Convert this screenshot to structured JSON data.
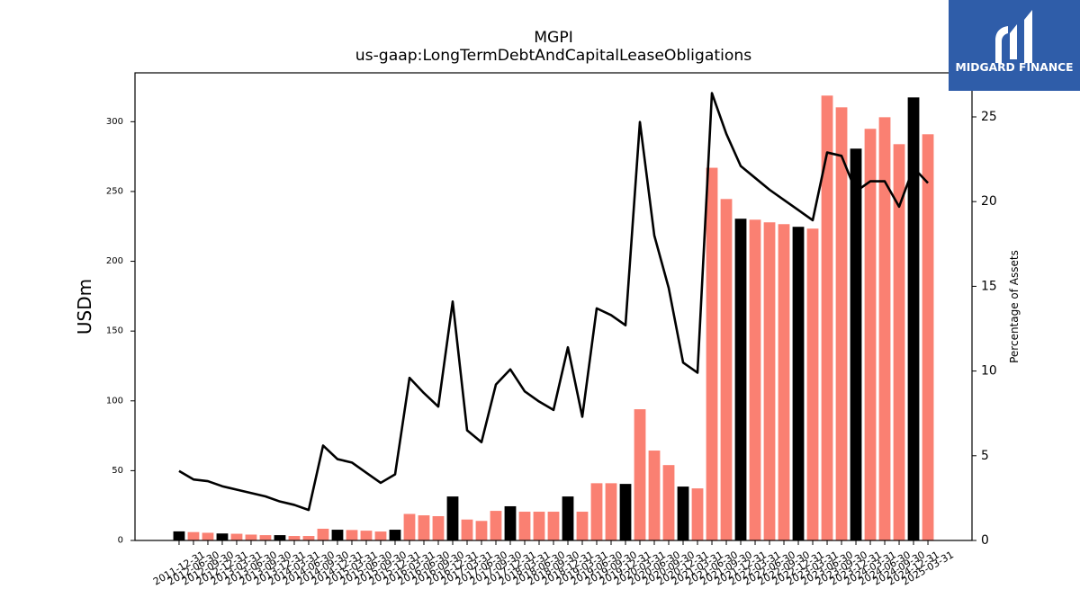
{
  "logo": {
    "text": "MIDGARD FINANCE",
    "bg_color": "#2f5da9",
    "fg_color": "#ffffff"
  },
  "chart_data": {
    "type": "bar",
    "title": "MGPI",
    "subtitle": "us-gaap:LongTermDebtAndCapitalLeaseObligations",
    "xlabel": "",
    "ylabel": "USDm",
    "y2label": "Percentage of Assets",
    "categories": [
      "2011-12-31",
      "2012-06-30",
      "2012-09-30",
      "2012-12-31",
      "2013-03-31",
      "2013-06-30",
      "2013-09-30",
      "2013-12-31",
      "2014-03-31",
      "2014-06-30",
      "2014-09-30",
      "2014-12-31",
      "2015-03-31",
      "2015-06-30",
      "2015-09-30",
      "2015-12-31",
      "2016-03-31",
      "2016-06-30",
      "2016-09-30",
      "2016-12-31",
      "2017-03-31",
      "2017-06-30",
      "2017-09-30",
      "2017-12-31",
      "2018-03-31",
      "2018-06-30",
      "2018-09-30",
      "2018-12-31",
      "2019-03-31",
      "2019-06-30",
      "2019-09-30",
      "2019-12-31",
      "2020-03-31",
      "2020-06-30",
      "2020-09-30",
      "2020-12-31",
      "2021-03-31",
      "2021-06-30",
      "2021-09-30",
      "2021-12-31",
      "2022-03-31",
      "2022-06-30",
      "2022-09-30",
      "2022-12-31",
      "2023-03-31",
      "2023-06-30",
      "2023-09-30",
      "2023-12-31",
      "2024-03-31",
      "2024-06-30",
      "2024-09-30",
      "2024-12-31",
      "2025-03-31"
    ],
    "series": [
      {
        "type": "bar",
        "y_axis": "left",
        "color": "#fa8072",
        "year_end_color": "#000000",
        "values": [
          6.5,
          6.0,
          5.5,
          5.0,
          4.8,
          4.2,
          3.8,
          3.8,
          3.2,
          3.2,
          8.4,
          7.7,
          7.5,
          7.0,
          6.4,
          7.7,
          19.0,
          18.0,
          17.4,
          31.5,
          15.0,
          14.0,
          21.2,
          24.5,
          20.6,
          20.6,
          20.6,
          31.5,
          20.6,
          41.0,
          41.0,
          40.5,
          94.0,
          64.4,
          54.0,
          38.6,
          37.3,
          267.0,
          244.6,
          230.5,
          229.8,
          227.9,
          226.6,
          224.7,
          223.4,
          318.7,
          310.3,
          280.7,
          294.9,
          303.2,
          283.9,
          317.4,
          291.0
        ]
      },
      {
        "type": "line",
        "y_axis": "right",
        "color": "#000000",
        "values": [
          4.1,
          3.6,
          3.5,
          3.2,
          3.0,
          2.8,
          2.6,
          2.3,
          2.1,
          1.8,
          5.6,
          4.8,
          4.6,
          4.0,
          3.4,
          3.9,
          9.6,
          8.7,
          7.9,
          14.1,
          6.5,
          5.8,
          9.2,
          10.1,
          8.8,
          8.2,
          7.7,
          11.4,
          7.3,
          13.7,
          13.3,
          12.7,
          24.7,
          18.0,
          14.9,
          10.5,
          9.9,
          26.4,
          24.0,
          22.1,
          21.4,
          20.7,
          20.1,
          19.5,
          18.9,
          22.9,
          22.7,
          20.6,
          21.2,
          21.2,
          19.7,
          22.0,
          21.1
        ]
      }
    ],
    "ylim": [
      0,
      335
    ],
    "y2lim": [
      0,
      27.6
    ],
    "yticks": [
      0,
      50,
      100,
      150,
      200,
      250,
      300
    ],
    "y2ticks": [
      0,
      5,
      10,
      15,
      20,
      25
    ],
    "grid": false
  }
}
